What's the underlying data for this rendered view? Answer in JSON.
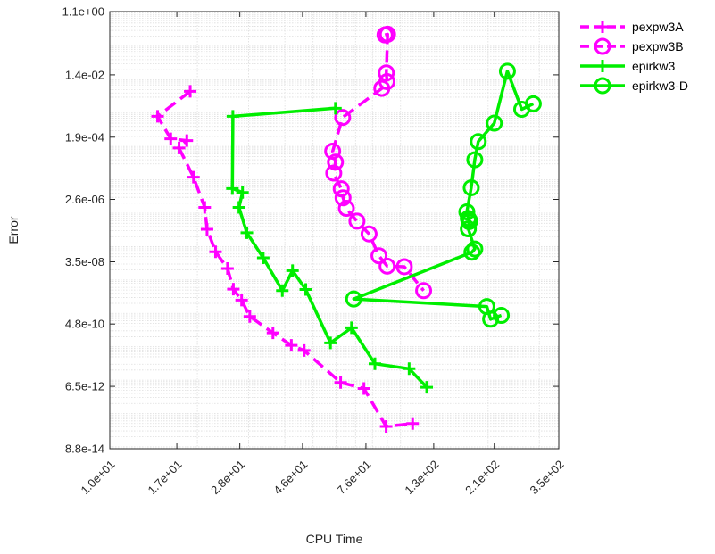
{
  "chart_data": {
    "type": "line",
    "xscale": "log",
    "yscale": "log",
    "xlim": [
      10,
      350
    ],
    "ylim": [
      8.8e-14,
      1.1
    ],
    "xlabel": "CPU Time",
    "ylabel": "Error",
    "x_tick_values": [
      10,
      17,
      28,
      46,
      76,
      130,
      210,
      350
    ],
    "x_tick_labels": [
      "1.0e+01",
      "1.7e+01",
      "2.8e+01",
      "4.6e+01",
      "7.6e+01",
      "1.3e+02",
      "2.1e+02",
      "3.5e+02"
    ],
    "y_tick_values": [
      8.8e-14,
      6.5e-12,
      4.8e-10,
      3.5e-08,
      2.6e-06,
      0.00019,
      0.014,
      1.1
    ],
    "y_tick_labels": [
      "8.8e-14",
      "6.5e-12",
      "4.8e-10",
      "3.5e-08",
      "2.6e-06",
      "1.9e-04",
      "1.4e-02",
      "1.1e+00"
    ],
    "grid": true,
    "legend_position": "outside-top-right",
    "series": [
      {
        "name": "pexpw3A",
        "color": "#ff00ff",
        "line_style": "dashed",
        "marker": "plus",
        "points": [
          [
            18.9,
            0.0045
          ],
          [
            14.6,
            0.0008
          ],
          [
            16.2,
            0.00017
          ],
          [
            18.4,
            0.00015
          ],
          [
            17.3,
            9e-05
          ],
          [
            19.4,
            1.2e-05
          ],
          [
            21.2,
            1.5e-06
          ],
          [
            21.6,
            3.3e-07
          ],
          [
            23.1,
            7e-08
          ],
          [
            25.4,
            2.2e-08
          ],
          [
            26.6,
            5.3e-09
          ],
          [
            28.4,
            2.5e-09
          ],
          [
            30.3,
            8.1e-10
          ],
          [
            36.4,
            2.6e-10
          ],
          [
            42.1,
            1.1e-10
          ],
          [
            46.6,
            7.7e-11
          ],
          [
            62.2,
            8.5e-12
          ],
          [
            74.8,
            5.6e-12
          ],
          [
            89.2,
            4.1e-13
          ],
          [
            110,
            5e-13
          ]
        ]
      },
      {
        "name": "pexpw3B",
        "color": "#ff00ff",
        "line_style": "dashed",
        "marker": "circle",
        "points": [
          [
            88.4,
            0.22
          ],
          [
            90.2,
            0.23
          ],
          [
            89.3,
            0.016
          ],
          [
            89.8,
            0.0088
          ],
          [
            86.2,
            0.0055
          ],
          [
            63.2,
            0.00074
          ],
          [
            58.4,
            7.2e-05
          ],
          [
            59.7,
            3.4e-05
          ],
          [
            58.9,
            1.6e-05
          ],
          [
            62.5,
            5.4e-06
          ],
          [
            63.4,
            2.9e-06
          ],
          [
            65.1,
            1.4e-06
          ],
          [
            70.8,
            5.8e-07
          ],
          [
            77.9,
            2.4e-07
          ],
          [
            84.3,
            5.3e-08
          ],
          [
            89.9,
            2.6e-08
          ],
          [
            103,
            2.5e-08
          ],
          [
            120,
            4.8e-09
          ]
        ]
      },
      {
        "name": "epirkw3",
        "color": "#00ee00",
        "line_style": "solid",
        "marker": "plus",
        "points": [
          [
            59.7,
            0.0014
          ],
          [
            26.5,
            0.0008
          ],
          [
            26.4,
            5.5e-06
          ],
          [
            28.6,
            4.2e-06
          ],
          [
            27.8,
            1.5e-06
          ],
          [
            29.6,
            2.6e-07
          ],
          [
            33.7,
            4.6e-08
          ],
          [
            39.2,
            4.8e-09
          ],
          [
            42.5,
            1.9e-08
          ],
          [
            47.2,
            5.2e-09
          ],
          [
            57.4,
            1.3e-10
          ],
          [
            67.8,
            3.7e-10
          ],
          [
            81.6,
            3.1e-11
          ],
          [
            107,
            2.2e-11
          ],
          [
            123,
            6.1e-12
          ]
        ]
      },
      {
        "name": "epirkw3-D",
        "color": "#00ee00",
        "line_style": "solid",
        "marker": "circle",
        "points": [
          [
            286,
            0.0019
          ],
          [
            261,
            0.0013
          ],
          [
            233,
            0.018
          ],
          [
            210,
            0.0005
          ],
          [
            185,
            0.00014
          ],
          [
            180,
            4e-05
          ],
          [
            175,
            5.8e-06
          ],
          [
            169,
            1.1e-06
          ],
          [
            171,
            7e-07
          ],
          [
            172,
            6.4e-07
          ],
          [
            173,
            5.8e-07
          ],
          [
            172,
            5.6e-07
          ],
          [
            171,
            3.4e-07
          ],
          [
            180,
            8.5e-08
          ],
          [
            176,
            6.8e-08
          ],
          [
            69,
            2.7e-09
          ],
          [
            198,
            1.6e-09
          ],
          [
            204,
            6.7e-10
          ],
          [
            222,
            8.7e-10
          ]
        ]
      }
    ]
  }
}
